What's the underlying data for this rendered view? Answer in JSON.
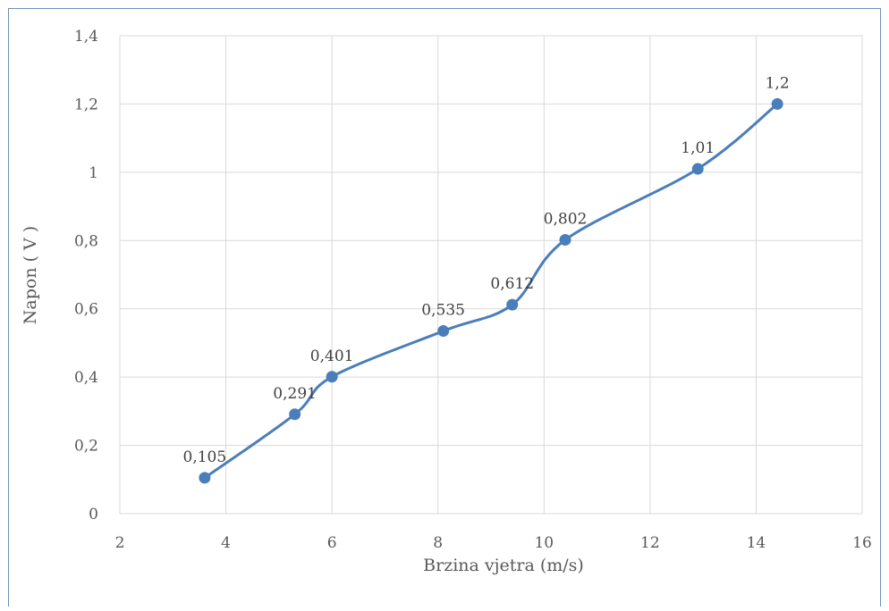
{
  "chart_data": {
    "type": "line",
    "title": "",
    "xlabel": "Brzina vjetra (m/s)",
    "ylabel": "Napon ( V )",
    "xlim": [
      2,
      16
    ],
    "ylim": [
      0,
      1.4
    ],
    "x_ticks": [
      "2",
      "4",
      "6",
      "8",
      "10",
      "12",
      "14",
      "16"
    ],
    "y_ticks": [
      "0",
      "0,2",
      "0,4",
      "0,6",
      "0,8",
      "1",
      "1,2",
      "1,4"
    ],
    "grid": true,
    "smooth": true,
    "series": [
      {
        "x": [
          3.6,
          5.3,
          6.0,
          8.1,
          9.4,
          10.4,
          12.9,
          14.4
        ],
        "y": [
          0.105,
          0.291,
          0.401,
          0.535,
          0.612,
          0.802,
          1.01,
          1.2
        ],
        "labels": [
          "0,105",
          "0,291",
          "0,401",
          "0,535",
          "0,612",
          "0,802",
          "1,01",
          "1,2"
        ],
        "color": "#4a7ebb"
      }
    ]
  }
}
